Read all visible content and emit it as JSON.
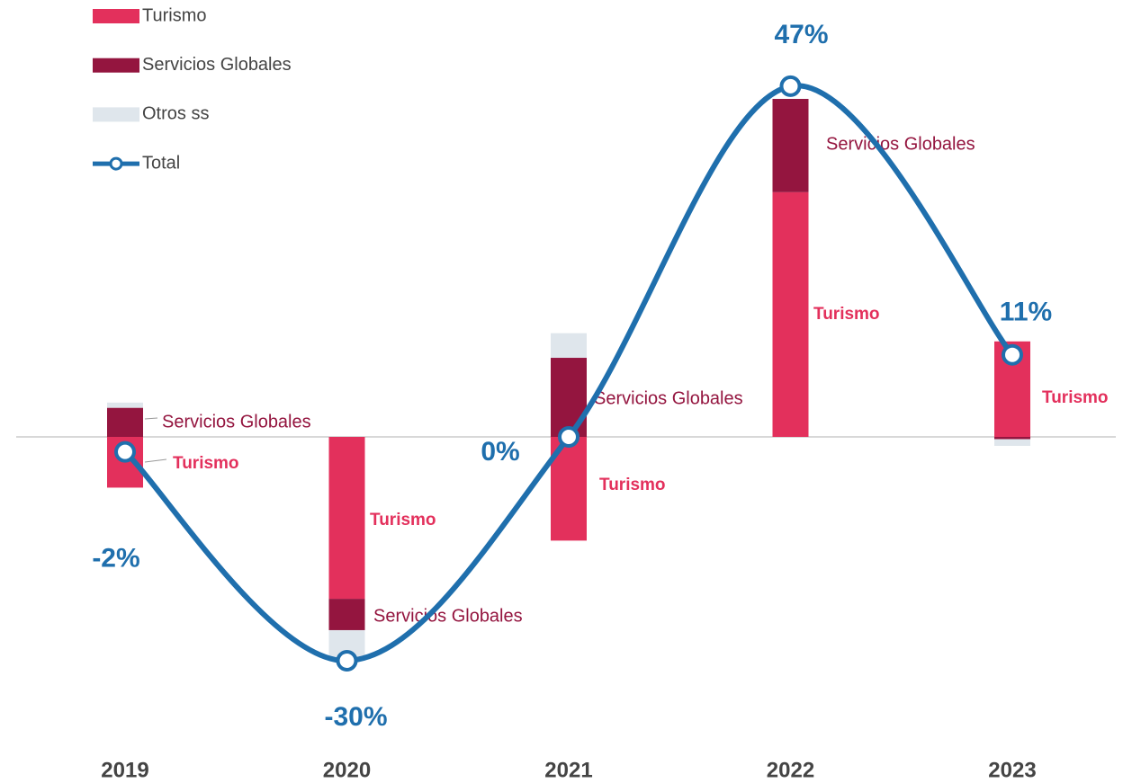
{
  "chart_data": {
    "type": "bar",
    "categories": [
      "2019",
      "2020",
      "2021",
      "2022",
      "2023"
    ],
    "series": [
      {
        "name": "Turismo",
        "color": "#e3305c",
        "values": [
          -6.8,
          -21.7,
          -13.9,
          32.8,
          12.8
        ]
      },
      {
        "name": "Servicios Globales",
        "color": "#94153f",
        "values": [
          3.9,
          -4.2,
          10.6,
          12.5,
          -0.3
        ]
      },
      {
        "name": "Otros ss",
        "color": "#dfe6ec",
        "values": [
          0.7,
          -4.1,
          3.3,
          0,
          -0.9
        ]
      },
      {
        "name": "Total",
        "type": "line",
        "color": "#1f6fad",
        "values": [
          -2,
          -30,
          0,
          47,
          11
        ],
        "value_labels": [
          "-2%",
          "-30%",
          "0%",
          "47%",
          "11%"
        ]
      }
    ],
    "legend": "top-left"
  }
}
